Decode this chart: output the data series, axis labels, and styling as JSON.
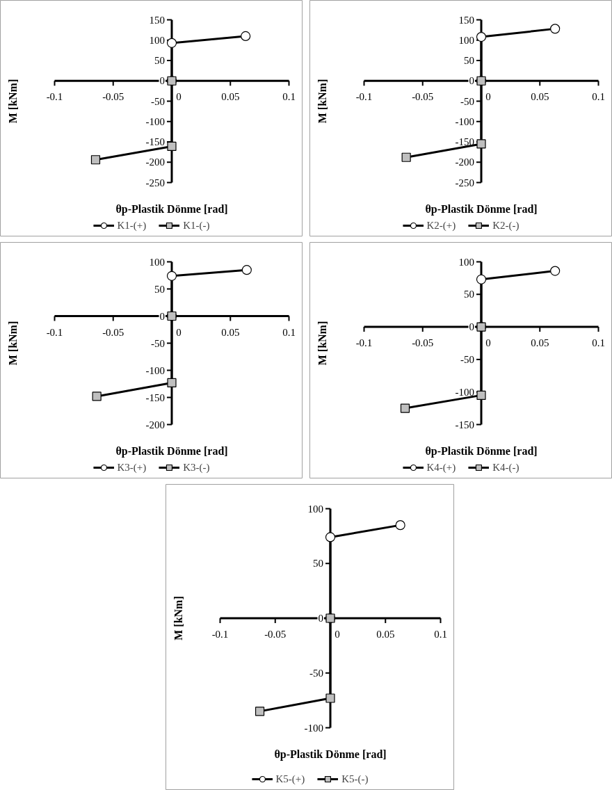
{
  "chart_data": [
    {
      "type": "line",
      "xlabel": "θp-Plastik Dönme [rad]",
      "ylabel": "M [kNm]",
      "xlim": [
        -0.1,
        0.1
      ],
      "xticks": [
        -0.1,
        -0.05,
        0,
        0.05,
        0.1
      ],
      "ylim": [
        -250,
        150
      ],
      "yticks": [
        -250,
        -200,
        -150,
        -100,
        -50,
        0,
        50,
        100,
        150
      ],
      "legend": "bottom",
      "series": [
        {
          "name": "K1-(+)",
          "color": "#000000",
          "marker": "circle",
          "x": [
            0,
            0,
            0.063
          ],
          "values": [
            0,
            93,
            110
          ]
        },
        {
          "name": "K1-(-)",
          "color": "#000000",
          "marker": "square",
          "x": [
            0,
            0,
            -0.065
          ],
          "values": [
            0,
            -161,
            -194
          ]
        }
      ]
    },
    {
      "type": "line",
      "xlabel": "θp-Plastik Dönme [rad]",
      "ylabel": "M [kNm]",
      "xlim": [
        -0.1,
        0.1
      ],
      "xticks": [
        -0.1,
        -0.05,
        0,
        0.05,
        0.1
      ],
      "ylim": [
        -250,
        150
      ],
      "yticks": [
        -250,
        -200,
        -150,
        -100,
        -50,
        0,
        50,
        100,
        150
      ],
      "legend": "bottom",
      "series": [
        {
          "name": "K2-(+)",
          "color": "#000000",
          "marker": "circle",
          "x": [
            0,
            0,
            0.063
          ],
          "values": [
            0,
            108,
            128
          ]
        },
        {
          "name": "K2-(-)",
          "color": "#000000",
          "marker": "square",
          "x": [
            0,
            0,
            -0.064
          ],
          "values": [
            0,
            -155,
            -188
          ]
        }
      ]
    },
    {
      "type": "line",
      "xlabel": "θp-Plastik Dönme [rad]",
      "ylabel": "M [kNm]",
      "xlim": [
        -0.1,
        0.1
      ],
      "xticks": [
        -0.1,
        -0.05,
        0,
        0.05,
        0.1
      ],
      "ylim": [
        -200,
        100
      ],
      "yticks": [
        -200,
        -150,
        -100,
        -50,
        0,
        50,
        100
      ],
      "legend": "bottom",
      "series": [
        {
          "name": "K3-(+)",
          "color": "#000000",
          "marker": "circle",
          "x": [
            0,
            0,
            0.064
          ],
          "values": [
            0,
            74,
            85
          ]
        },
        {
          "name": "K3-(-)",
          "color": "#000000",
          "marker": "square",
          "x": [
            0,
            0,
            -0.064
          ],
          "values": [
            0,
            -123,
            -148
          ]
        }
      ]
    },
    {
      "type": "line",
      "xlabel": "θp-Plastik Dönme [rad]",
      "ylabel": "M [kNm]",
      "xlim": [
        -0.1,
        0.1
      ],
      "xticks": [
        -0.1,
        -0.05,
        0,
        0.05,
        0.1
      ],
      "ylim": [
        -150,
        100
      ],
      "yticks": [
        -150,
        -100,
        -50,
        0,
        50,
        100
      ],
      "legend": "bottom",
      "series": [
        {
          "name": "K4-(+)",
          "color": "#000000",
          "marker": "circle",
          "x": [
            0,
            0,
            0.063
          ],
          "values": [
            0,
            73,
            86
          ]
        },
        {
          "name": "K4-(-)",
          "color": "#000000",
          "marker": "square",
          "x": [
            0,
            0,
            -0.065
          ],
          "values": [
            0,
            -105,
            -125
          ]
        }
      ]
    },
    {
      "type": "line",
      "xlabel": "θp-Plastik Dönme [rad]",
      "ylabel": "M [kNm]",
      "xlim": [
        -0.1,
        0.1
      ],
      "xticks": [
        -0.1,
        -0.05,
        0,
        0.05,
        0.1
      ],
      "ylim": [
        -100,
        100
      ],
      "yticks": [
        -100,
        -50,
        0,
        50,
        100
      ],
      "legend": "bottom",
      "series": [
        {
          "name": "K5-(+)",
          "color": "#000000",
          "marker": "circle",
          "x": [
            0,
            0,
            0.0635
          ],
          "values": [
            0,
            74,
            85
          ]
        },
        {
          "name": "K5-(-)",
          "color": "#000000",
          "marker": "square",
          "x": [
            0,
            0,
            -0.064
          ],
          "values": [
            0,
            -73,
            -85
          ]
        }
      ]
    }
  ]
}
